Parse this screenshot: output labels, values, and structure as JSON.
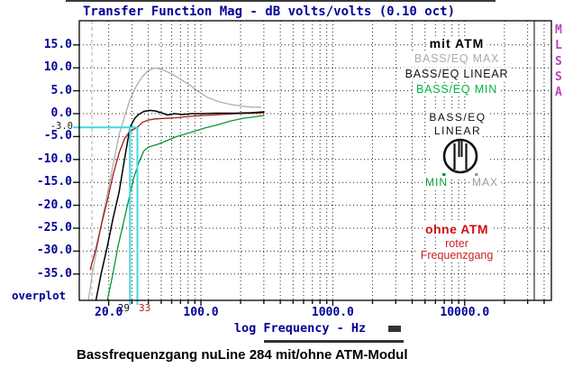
{
  "header": {
    "title": "Transfer Function Mag - dB volts/volts (0.10 oct)"
  },
  "footer": {
    "caption": "Bassfrequenzgang nuLine 284 mit/ohne ATM-Modul"
  },
  "brand": {
    "letters": [
      "M",
      "L",
      "S",
      "S",
      "A"
    ],
    "color": "#BE3FBE"
  },
  "plot": {
    "overplot_label": "overplot",
    "y_axis": {
      "tick_labels": [
        "15.0",
        "10.0",
        "5.0",
        "0.0",
        "-5.0",
        "-10.0",
        "-15.0",
        "-20.0",
        "-25.0",
        "-30.0",
        "-35.0"
      ],
      "cursor_label": "-3.0"
    },
    "x_axis": {
      "tick_labels": [
        "20.0",
        "100.0",
        "1000.0",
        "10000.0"
      ],
      "tick_freqs_hz": [
        20,
        100,
        1000,
        10000
      ],
      "title": "log Frequency - Hz"
    },
    "legend": {
      "items": [
        {
          "label": "mit ATM",
          "color": "#000000"
        },
        {
          "label": "BASS/EQ MAX",
          "color": "#ABABAB"
        },
        {
          "label": "BASS/EQ LINEAR",
          "color": "#111111"
        },
        {
          "label": "BASS/EQ MIN",
          "color": "#00B33C"
        }
      ]
    },
    "knob": {
      "title_line1": "BASS/EQ",
      "title_line2": "LINEAR",
      "min_label": "MIN",
      "max_label": "MAX"
    },
    "note": {
      "line1": "ohne ATM",
      "line2": "roter",
      "line3": "Frequenzgang"
    },
    "cursors": {
      "v1_label": "29",
      "v2_label": "33",
      "h_label_db": "-3.0"
    }
  },
  "colors": {
    "axis_text_navy": "#000099",
    "cursor_cyan": "#3FD9E6",
    "grid_dots": "#222222",
    "note_red": "#CC1111",
    "brand_magenta": "#BE3FBE"
  },
  "chart_data": {
    "type": "line",
    "title": "Transfer Function Mag - dB volts/volts (0.10 oct)",
    "xlabel": "log Frequency - Hz",
    "ylabel": "dB volts/volts",
    "x_scale": "log",
    "x_range_hz": [
      12.5,
      44000
    ],
    "ylim_db": [
      -37.5,
      17.5
    ],
    "y_tick_step_db": 5,
    "x_major_ticks_hz": [
      20,
      100,
      1000,
      10000
    ],
    "smoothing": "0.10 oct",
    "grid": "dotted",
    "legend_position": "top-right",
    "cursors": {
      "h_line_db": -3.0,
      "v_line1_hz": 29,
      "v_line2_hz": 33
    },
    "series": [
      {
        "name": "BASS/EQ MAX",
        "color": "#A9A9A9",
        "width": 1.2,
        "f_hz": [
          14,
          15,
          16.5,
          18,
          20,
          22,
          24,
          26.5,
          29,
          32.5,
          36,
          40,
          45,
          51,
          60,
          70,
          82,
          95,
          113,
          137,
          168,
          210,
          245,
          285
        ],
        "db": [
          -41,
          -35,
          -28.5,
          -22.5,
          -16,
          -10,
          -4.5,
          -0.4,
          3.1,
          6.1,
          8.1,
          9.4,
          10,
          9.6,
          8.7,
          7.5,
          6.3,
          4.9,
          3.5,
          2.6,
          2,
          1.6,
          1.4,
          1.4
        ]
      },
      {
        "name": "BASS/EQ MIN",
        "color": "#009A30",
        "width": 1.3,
        "f_hz": [
          19.5,
          21.5,
          23.5,
          26,
          28.5,
          31,
          34,
          37,
          40,
          47,
          55,
          64,
          75,
          88,
          108,
          135,
          168,
          210,
          252,
          300
        ],
        "db": [
          -41,
          -35,
          -29,
          -23.5,
          -18.5,
          -14,
          -10.5,
          -8.1,
          -7.3,
          -6.7,
          -5.9,
          -5.1,
          -4.5,
          -3.9,
          -3.1,
          -2.4,
          -1.6,
          -1,
          -0.7,
          -0.4
        ]
      },
      {
        "name": "ohne ATM",
        "color": "#A01818",
        "width": 1.3,
        "f_hz": [
          14.5,
          16,
          17.5,
          19.5,
          21.5,
          24,
          26.5,
          29,
          31,
          33,
          36,
          40,
          45,
          52,
          64,
          82,
          103,
          140,
          190,
          250,
          300
        ],
        "db": [
          -34,
          -29.5,
          -24.5,
          -19,
          -13.5,
          -8.5,
          -5.3,
          -3.9,
          -3.4,
          -3,
          -1.9,
          -1.4,
          -1.15,
          -1.05,
          -0.9,
          -0.6,
          -0.4,
          -0.2,
          0,
          0.1,
          0.2
        ]
      },
      {
        "name": "mit ATM / BASS/EQ LINEAR",
        "color": "#000000",
        "width": 1.5,
        "f_hz": [
          16,
          17.5,
          19.5,
          21.5,
          24,
          26.5,
          29,
          31.5,
          34,
          37,
          41,
          45,
          50,
          56,
          63,
          72,
          85,
          100,
          130,
          180,
          240,
          300
        ],
        "db": [
          -41,
          -35,
          -29,
          -23,
          -17,
          -9.5,
          -3,
          -1,
          -0.1,
          0.5,
          0.7,
          0.6,
          0.2,
          -0.3,
          0,
          -0.2,
          0,
          0,
          0.1,
          0.1,
          0.2,
          0.4
        ]
      }
    ]
  }
}
